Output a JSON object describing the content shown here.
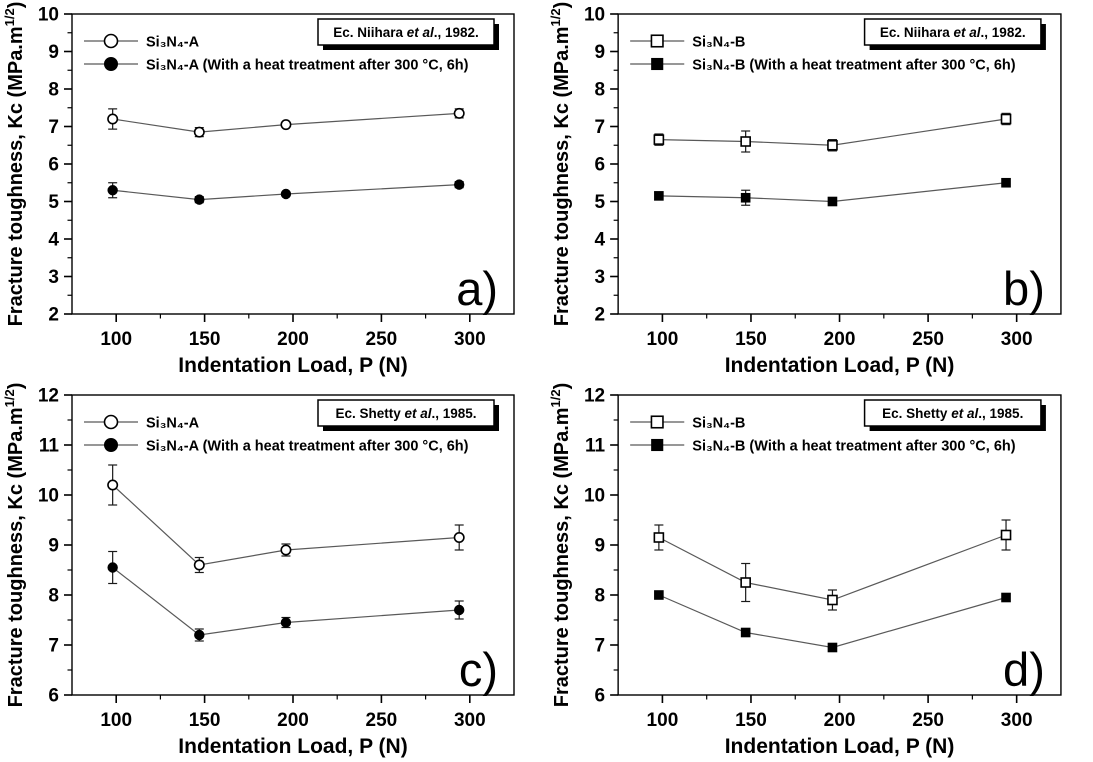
{
  "figure": {
    "background": "#ffffff",
    "line_color": "#595959",
    "errorbar_color": "#1a1a1a",
    "marker_color": "#000000"
  },
  "chart_data": [
    {
      "type": "line",
      "panel_letter": "a)",
      "reference": {
        "pre": "Ec. Niihara ",
        "italic": "et al",
        "post": "., 1982."
      },
      "xlabel": "Indentation Load, P (N)",
      "ylabel_main": "Fracture toughness, Kc (MPa.m",
      "ylabel_sup": "1/2",
      "ylabel_close": ")",
      "xlim": [
        75,
        325
      ],
      "ylim": [
        2,
        10
      ],
      "xticks": [
        100,
        150,
        200,
        250,
        300
      ],
      "yticks": [
        2,
        3,
        4,
        5,
        6,
        7,
        8,
        9,
        10
      ],
      "x_minor_step": 25,
      "y_minor_step": 0.5,
      "x": [
        98,
        147,
        196,
        294
      ],
      "series": [
        {
          "name": "Si₃N₄-A",
          "marker": "circle",
          "fill": "open",
          "values": [
            7.2,
            6.85,
            7.05,
            7.35
          ],
          "errors": [
            0.27,
            0.12,
            0,
            0.12
          ]
        },
        {
          "name": "Si₃N₄-A (With a heat treatment after 300 °C, 6h)",
          "marker": "circle",
          "fill": "filled",
          "values": [
            5.3,
            5.05,
            5.2,
            5.45
          ],
          "errors": [
            0.2,
            0.08,
            0,
            0.08
          ]
        }
      ]
    },
    {
      "type": "line",
      "panel_letter": "b)",
      "reference": {
        "pre": "Ec. Niihara ",
        "italic": "et al",
        "post": "., 1982."
      },
      "xlabel": "Indentation Load, P (N)",
      "ylabel_main": "Fracture toughness, Kc (MPa.m",
      "ylabel_sup": "1/2",
      "ylabel_close": ")",
      "xlim": [
        75,
        325
      ],
      "ylim": [
        2,
        10
      ],
      "xticks": [
        100,
        150,
        200,
        250,
        300
      ],
      "yticks": [
        2,
        3,
        4,
        5,
        6,
        7,
        8,
        9,
        10
      ],
      "x_minor_step": 25,
      "y_minor_step": 0.5,
      "x": [
        98,
        147,
        196,
        294
      ],
      "series": [
        {
          "name": "Si₃N₄-B",
          "marker": "square",
          "fill": "open",
          "values": [
            6.65,
            6.6,
            6.5,
            7.2
          ],
          "errors": [
            0.15,
            0.28,
            0.15,
            0.15
          ]
        },
        {
          "name": "Si₃N₄-B (With a heat treatment after 300 °C, 6h)",
          "marker": "square",
          "fill": "filled",
          "values": [
            5.15,
            5.1,
            5.0,
            5.5
          ],
          "errors": [
            0.1,
            0.2,
            0.1,
            0.1
          ]
        }
      ]
    },
    {
      "type": "line",
      "panel_letter": "c)",
      "reference": {
        "pre": "Ec. Shetty ",
        "italic": "et al",
        "post": "., 1985."
      },
      "xlabel": "Indentation Load, P (N)",
      "ylabel_main": "Fracture toughness, Kc (MPa.m",
      "ylabel_sup": "1/2",
      "ylabel_close": ")",
      "xlim": [
        75,
        325
      ],
      "ylim": [
        6,
        12
      ],
      "xticks": [
        100,
        150,
        200,
        250,
        300
      ],
      "yticks": [
        6,
        7,
        8,
        9,
        10,
        11,
        12
      ],
      "x_minor_step": 25,
      "y_minor_step": 0.5,
      "x": [
        98,
        147,
        196,
        294
      ],
      "series": [
        {
          "name": "Si₃N₄-A",
          "marker": "circle",
          "fill": "open",
          "values": [
            10.2,
            8.6,
            8.9,
            9.15
          ],
          "errors": [
            0.4,
            0.15,
            0.12,
            0.25
          ]
        },
        {
          "name": "Si₃N₄-A (With a heat treatment after 300 °C, 6h)",
          "marker": "circle",
          "fill": "filled",
          "values": [
            8.55,
            7.2,
            7.45,
            7.7
          ],
          "errors": [
            0.32,
            0.12,
            0.1,
            0.18
          ]
        }
      ]
    },
    {
      "type": "line",
      "panel_letter": "d)",
      "reference": {
        "pre": "Ec. Shetty ",
        "italic": "et al",
        "post": "., 1985."
      },
      "xlabel": "Indentation Load, P (N)",
      "ylabel_main": "Fracture toughness, Kc (MPa.m",
      "ylabel_sup": "1/2",
      "ylabel_close": ")",
      "xlim": [
        75,
        325
      ],
      "ylim": [
        6,
        12
      ],
      "xticks": [
        100,
        150,
        200,
        250,
        300
      ],
      "yticks": [
        6,
        7,
        8,
        9,
        10,
        11,
        12
      ],
      "x_minor_step": 25,
      "y_minor_step": 0.5,
      "x": [
        98,
        147,
        196,
        294
      ],
      "series": [
        {
          "name": "Si₃N₄-B",
          "marker": "square",
          "fill": "open",
          "values": [
            9.15,
            8.25,
            7.9,
            9.2
          ],
          "errors": [
            0.25,
            0.38,
            0.2,
            0.3
          ]
        },
        {
          "name": "Si₃N₄-B (With a heat treatment after 300 °C, 6h)",
          "marker": "square",
          "fill": "filled",
          "values": [
            8.0,
            7.25,
            6.95,
            7.95
          ],
          "errors": [
            0,
            0,
            0,
            0
          ]
        }
      ]
    }
  ]
}
